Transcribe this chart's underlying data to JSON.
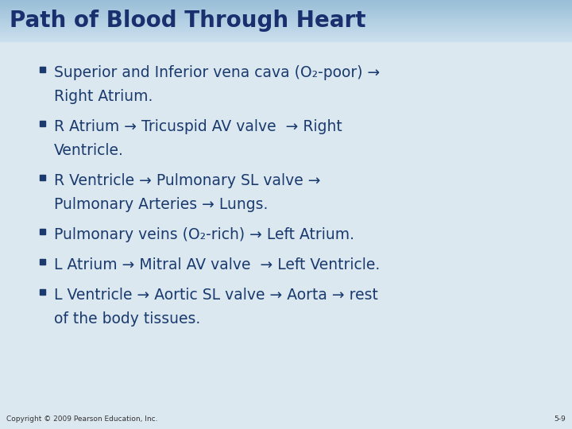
{
  "title": "Path of Blood Through Heart",
  "title_color": "#1a2f6e",
  "title_bg_color": "#b8d4e8",
  "body_bg": "#dde8f0",
  "content_bg": "#eef4f8",
  "bullet_square_color": "#1a3a6e",
  "text_color": "#1a3a6e",
  "copyright": "Copyright © 2009 Pearson Education, Inc.",
  "slide_number": "5-9",
  "bullets": [
    {
      "line1": "Superior and Inferior vena cava (O₂-poor) →",
      "line2": "Right Atrium."
    },
    {
      "line1": "R Atrium → Tricuspid AV valve  → Right",
      "line2": "Ventricle."
    },
    {
      "line1": "R Ventricle → Pulmonary SL valve →",
      "line2": "Pulmonary Arteries → Lungs."
    },
    {
      "line1": "Pulmonary veins (O₂-rich) → Left Atrium.",
      "line2": null
    },
    {
      "line1": "L Atrium → Mitral AV valve  → Left Ventricle.",
      "line2": null
    },
    {
      "line1": "L Ventricle → Aortic SL valve → Aorta → rest",
      "line2": "of the body tissues."
    }
  ],
  "title_font_size": 20,
  "bullet_font_size": 13.5,
  "title_bar_height": 52,
  "fig_width": 7.2,
  "fig_height": 5.4,
  "dpi": 100
}
